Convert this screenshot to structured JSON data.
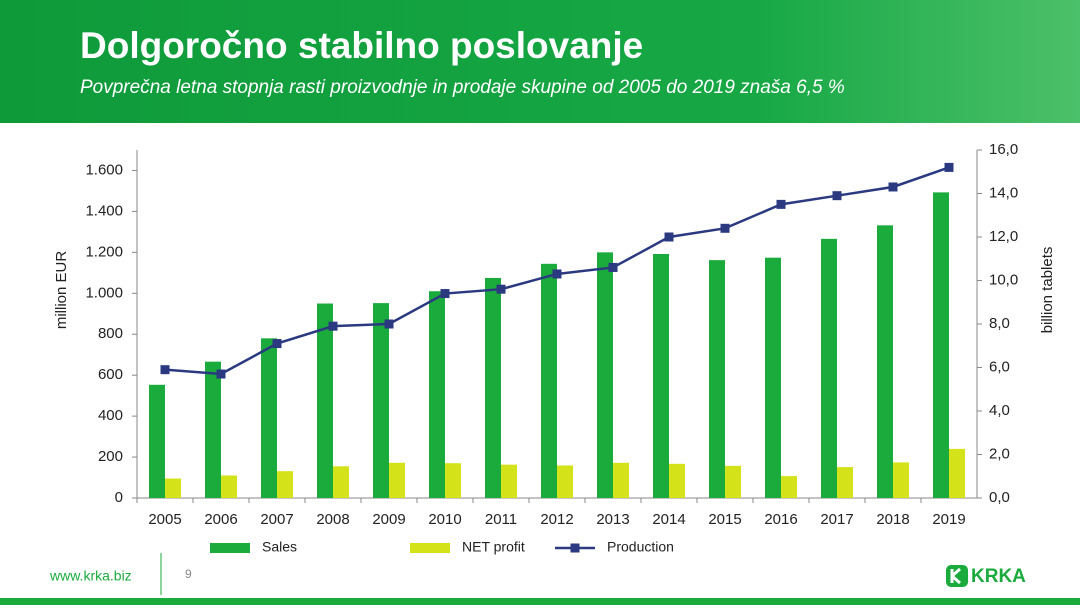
{
  "header": {
    "title": "Dolgoročno stabilno poslovanje",
    "subtitle": "Povprečna letna stopnja rasti proizvodnje in prodaje skupine od 2005 do 2019 znaša 6,5 %"
  },
  "footer": {
    "url": "www.krka.biz",
    "page": "9",
    "logo": "KRKA"
  },
  "chart_data": {
    "type": "bar",
    "categories": [
      "2005",
      "2006",
      "2007",
      "2008",
      "2009",
      "2010",
      "2011",
      "2012",
      "2013",
      "2014",
      "2015",
      "2016",
      "2017",
      "2018",
      "2019"
    ],
    "series": [
      {
        "name": "Sales",
        "color": "#1aab3c",
        "values": [
          553,
          666,
          780,
          950,
          952,
          1010,
          1075,
          1144,
          1200,
          1192,
          1162,
          1174,
          1266,
          1332,
          1493
        ]
      },
      {
        "name": "NET profit",
        "color": "#d4e21a",
        "values": [
          95,
          110,
          131,
          155,
          172,
          170,
          163,
          159,
          172,
          167,
          157,
          107,
          151,
          174,
          240
        ]
      },
      {
        "name": "Production",
        "type": "line",
        "axis": "y2",
        "color": "#2b3a80",
        "values": [
          5.9,
          5.7,
          7.1,
          7.9,
          8.0,
          9.4,
          9.6,
          10.3,
          10.6,
          12.0,
          12.4,
          13.5,
          13.9,
          14.3,
          15.2
        ]
      }
    ],
    "y_label": "million EUR",
    "y2_label": "billion tablets",
    "ylim": [
      0,
      1700
    ],
    "yticks": [
      0,
      200,
      400,
      600,
      800,
      {
        "value": 1000,
        "label": "1.000"
      },
      {
        "value": 1200,
        "label": "1.200"
      },
      {
        "value": 1400,
        "label": "1.400"
      },
      {
        "value": 1600,
        "label": "1.600"
      }
    ],
    "y2lim": [
      0,
      16
    ],
    "y2ticks": [
      {
        "value": 0,
        "label": "0,0"
      },
      {
        "value": 2,
        "label": "2,0"
      },
      {
        "value": 4,
        "label": "4,0"
      },
      {
        "value": 6,
        "label": "6,0"
      },
      {
        "value": 8,
        "label": "8,0"
      },
      {
        "value": 10,
        "label": "10,0"
      },
      {
        "value": 12,
        "label": "12,0"
      },
      {
        "value": 14,
        "label": "14,0"
      },
      {
        "value": 16,
        "label": "16,0"
      }
    ],
    "legend": "bottom",
    "grid": false
  }
}
